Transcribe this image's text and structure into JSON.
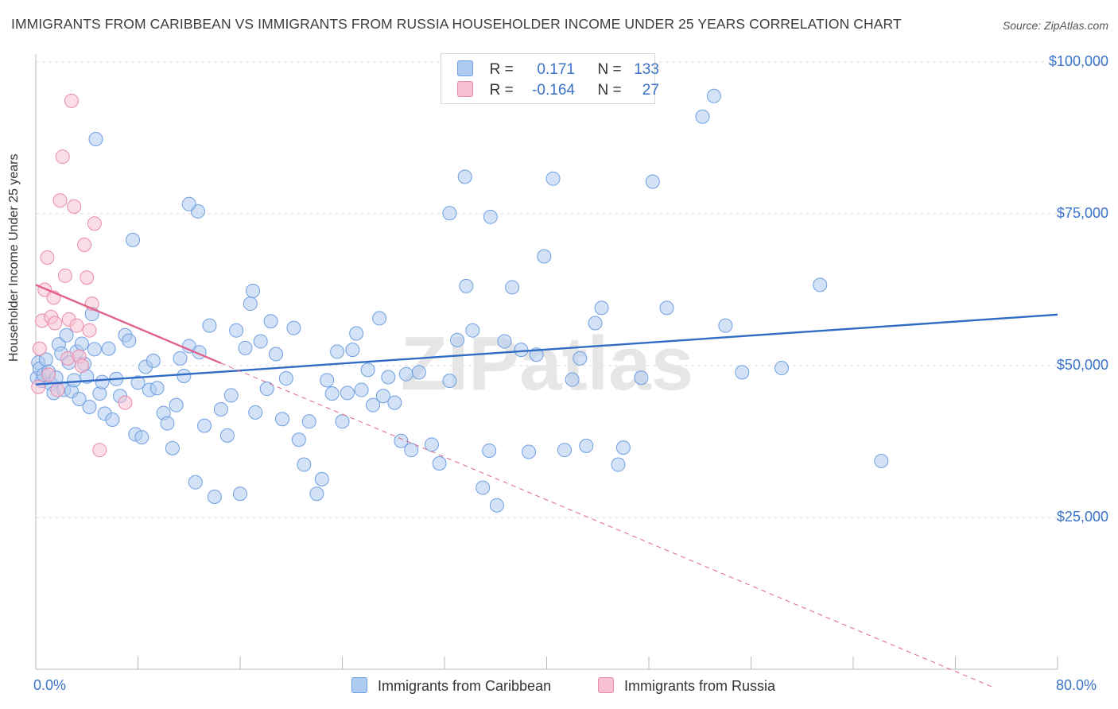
{
  "title": "IMMIGRANTS FROM CARIBBEAN VS IMMIGRANTS FROM RUSSIA HOUSEHOLDER INCOME UNDER 25 YEARS CORRELATION CHART",
  "source": "Source: ZipAtlas.com",
  "watermark": "ZIPatlas",
  "colors": {
    "caribbean_fill": "#aecbf0",
    "caribbean_stroke": "#6e9fe0",
    "caribbean_line": "#2f6cc6",
    "russia_fill": "#f7c1d2",
    "russia_stroke": "#e88aaa",
    "russia_line": "#e0628a",
    "tick_text": "#3a72c8",
    "grid": "#dddddd"
  },
  "legend_top": {
    "rows": [
      {
        "r_label": "R =",
        "r_value": "0.171",
        "n_label": "N =",
        "n_value": "133"
      },
      {
        "r_label": "R =",
        "r_value": "-0.164",
        "n_label": "N =",
        "n_value": "27"
      }
    ]
  },
  "legend_bottom": [
    {
      "label": "Immigrants from Caribbean"
    },
    {
      "label": "Immigrants from Russia"
    }
  ],
  "chart_data": {
    "type": "scatter",
    "ylabel": "Householder Income Under 25 years",
    "xlim": [
      0,
      80
    ],
    "ylim": [
      0,
      105000
    ],
    "x_tick_labels": [
      "0.0%",
      "80.0%"
    ],
    "y_ticks": [
      {
        "value": 25000,
        "label": "$25,000"
      },
      {
        "value": 50000,
        "label": "$50,000"
      },
      {
        "value": 75000,
        "label": "$75,000"
      },
      {
        "value": 100000,
        "label": "$100,000"
      }
    ],
    "grid": true,
    "series": [
      {
        "name": "Immigrants from Caribbean",
        "points": [
          [
            0.1,
            48000
          ],
          [
            0.2,
            50500
          ],
          [
            0.3,
            49500
          ],
          [
            0.5,
            47500
          ],
          [
            0.6,
            48500
          ],
          [
            0.8,
            51000
          ],
          [
            1.0,
            49000
          ],
          [
            1.2,
            47000
          ],
          [
            1.4,
            45500
          ],
          [
            1.6,
            48000
          ],
          [
            1.8,
            53500
          ],
          [
            2.0,
            52000
          ],
          [
            2.2,
            46000
          ],
          [
            2.4,
            55000
          ],
          [
            2.6,
            50500
          ],
          [
            2.8,
            45800
          ],
          [
            3.0,
            47600
          ],
          [
            3.2,
            52300
          ],
          [
            3.4,
            44500
          ],
          [
            3.6,
            53600
          ],
          [
            3.8,
            50300
          ],
          [
            4.0,
            48200
          ],
          [
            4.2,
            43200
          ],
          [
            4.4,
            58500
          ],
          [
            4.6,
            52700
          ],
          [
            5.0,
            45400
          ],
          [
            5.2,
            47300
          ],
          [
            5.4,
            42100
          ],
          [
            5.7,
            52800
          ],
          [
            6.0,
            41100
          ],
          [
            6.3,
            47800
          ],
          [
            6.6,
            45000
          ],
          [
            7.0,
            55000
          ],
          [
            7.3,
            54100
          ],
          [
            7.6,
            70700
          ],
          [
            7.8,
            38700
          ],
          [
            8.0,
            47200
          ],
          [
            8.3,
            38200
          ],
          [
            8.6,
            49800
          ],
          [
            8.9,
            46000
          ],
          [
            9.2,
            50800
          ],
          [
            9.5,
            46300
          ],
          [
            10.0,
            42200
          ],
          [
            10.3,
            40500
          ],
          [
            10.7,
            36400
          ],
          [
            11.0,
            43500
          ],
          [
            11.3,
            51200
          ],
          [
            11.6,
            48300
          ],
          [
            12.0,
            53200
          ],
          [
            12.5,
            30800
          ],
          [
            12.8,
            52200
          ],
          [
            13.2,
            40100
          ],
          [
            13.6,
            56600
          ],
          [
            14.0,
            28400
          ],
          [
            14.5,
            42800
          ],
          [
            15.0,
            38500
          ],
          [
            15.3,
            45100
          ],
          [
            15.7,
            55800
          ],
          [
            16.0,
            28900
          ],
          [
            16.4,
            52900
          ],
          [
            16.8,
            60200
          ],
          [
            17.2,
            42300
          ],
          [
            17.6,
            54000
          ],
          [
            18.1,
            46200
          ],
          [
            18.4,
            57300
          ],
          [
            18.8,
            51900
          ],
          [
            19.3,
            41200
          ],
          [
            19.6,
            47900
          ],
          [
            20.2,
            56200
          ],
          [
            20.6,
            37800
          ],
          [
            21.0,
            33700
          ],
          [
            21.4,
            40800
          ],
          [
            22.0,
            28900
          ],
          [
            22.4,
            31300
          ],
          [
            22.8,
            47600
          ],
          [
            23.2,
            45400
          ],
          [
            23.6,
            52300
          ],
          [
            24.0,
            40800
          ],
          [
            24.4,
            45500
          ],
          [
            24.8,
            52600
          ],
          [
            25.1,
            55300
          ],
          [
            25.5,
            46000
          ],
          [
            26.0,
            49300
          ],
          [
            26.4,
            43500
          ],
          [
            26.9,
            57800
          ],
          [
            27.2,
            45000
          ],
          [
            27.6,
            48100
          ],
          [
            28.1,
            43900
          ],
          [
            28.6,
            37600
          ],
          [
            29.0,
            48600
          ],
          [
            29.4,
            36100
          ],
          [
            30.0,
            48900
          ],
          [
            31.0,
            37000
          ],
          [
            31.6,
            33900
          ],
          [
            32.4,
            47500
          ],
          [
            33.0,
            54200
          ],
          [
            33.7,
            63100
          ],
          [
            34.2,
            55800
          ],
          [
            35.0,
            29900
          ],
          [
            35.5,
            36000
          ],
          [
            36.1,
            27000
          ],
          [
            36.7,
            54000
          ],
          [
            37.3,
            62900
          ],
          [
            38.0,
            52600
          ],
          [
            38.6,
            35800
          ],
          [
            39.2,
            51800
          ],
          [
            39.8,
            68000
          ],
          [
            40.5,
            80800
          ],
          [
            41.4,
            36100
          ],
          [
            42.0,
            47700
          ],
          [
            42.6,
            51200
          ],
          [
            43.1,
            36800
          ],
          [
            43.8,
            57000
          ],
          [
            44.3,
            59500
          ],
          [
            45.6,
            33700
          ],
          [
            46.0,
            36500
          ],
          [
            47.4,
            48000
          ],
          [
            48.3,
            80300
          ],
          [
            49.4,
            59500
          ],
          [
            52.2,
            91000
          ],
          [
            53.1,
            94400
          ],
          [
            54.0,
            56600
          ],
          [
            55.3,
            48900
          ],
          [
            58.4,
            49600
          ],
          [
            61.4,
            63300
          ],
          [
            66.2,
            34300
          ],
          [
            4.7,
            87300
          ],
          [
            12.7,
            75400
          ],
          [
            17.0,
            62300
          ],
          [
            33.6,
            81100
          ],
          [
            32.4,
            75100
          ],
          [
            35.6,
            74500
          ],
          [
            12.0,
            76600
          ]
        ]
      },
      {
        "name": "Immigrants from Russia",
        "points": [
          [
            0.2,
            46500
          ],
          [
            0.3,
            52800
          ],
          [
            0.5,
            57400
          ],
          [
            0.7,
            62500
          ],
          [
            0.9,
            67800
          ],
          [
            1.0,
            48500
          ],
          [
            1.2,
            58000
          ],
          [
            1.4,
            61200
          ],
          [
            1.5,
            57000
          ],
          [
            1.7,
            46000
          ],
          [
            1.9,
            77200
          ],
          [
            2.1,
            84400
          ],
          [
            2.3,
            64800
          ],
          [
            2.5,
            51200
          ],
          [
            2.6,
            57600
          ],
          [
            2.8,
            93600
          ],
          [
            3.0,
            76200
          ],
          [
            3.2,
            56600
          ],
          [
            3.4,
            51500
          ],
          [
            3.6,
            50000
          ],
          [
            3.8,
            69900
          ],
          [
            4.0,
            64500
          ],
          [
            4.2,
            55800
          ],
          [
            4.4,
            60200
          ],
          [
            4.6,
            73400
          ],
          [
            5.0,
            36100
          ],
          [
            7.0,
            43900
          ]
        ]
      }
    ],
    "trend_lines": [
      {
        "series": "Immigrants from Caribbean",
        "x": [
          0,
          80
        ],
        "y": [
          46900,
          58400
        ],
        "style": "solid"
      },
      {
        "series": "Immigrants from Russia",
        "x": [
          0,
          14.5
        ],
        "y": [
          63300,
          50400
        ],
        "style": "solid"
      },
      {
        "series": "Immigrants from Russia",
        "x": [
          14.5,
          75
        ],
        "y": [
          50400,
          -3000
        ],
        "style": "dashed"
      }
    ]
  }
}
